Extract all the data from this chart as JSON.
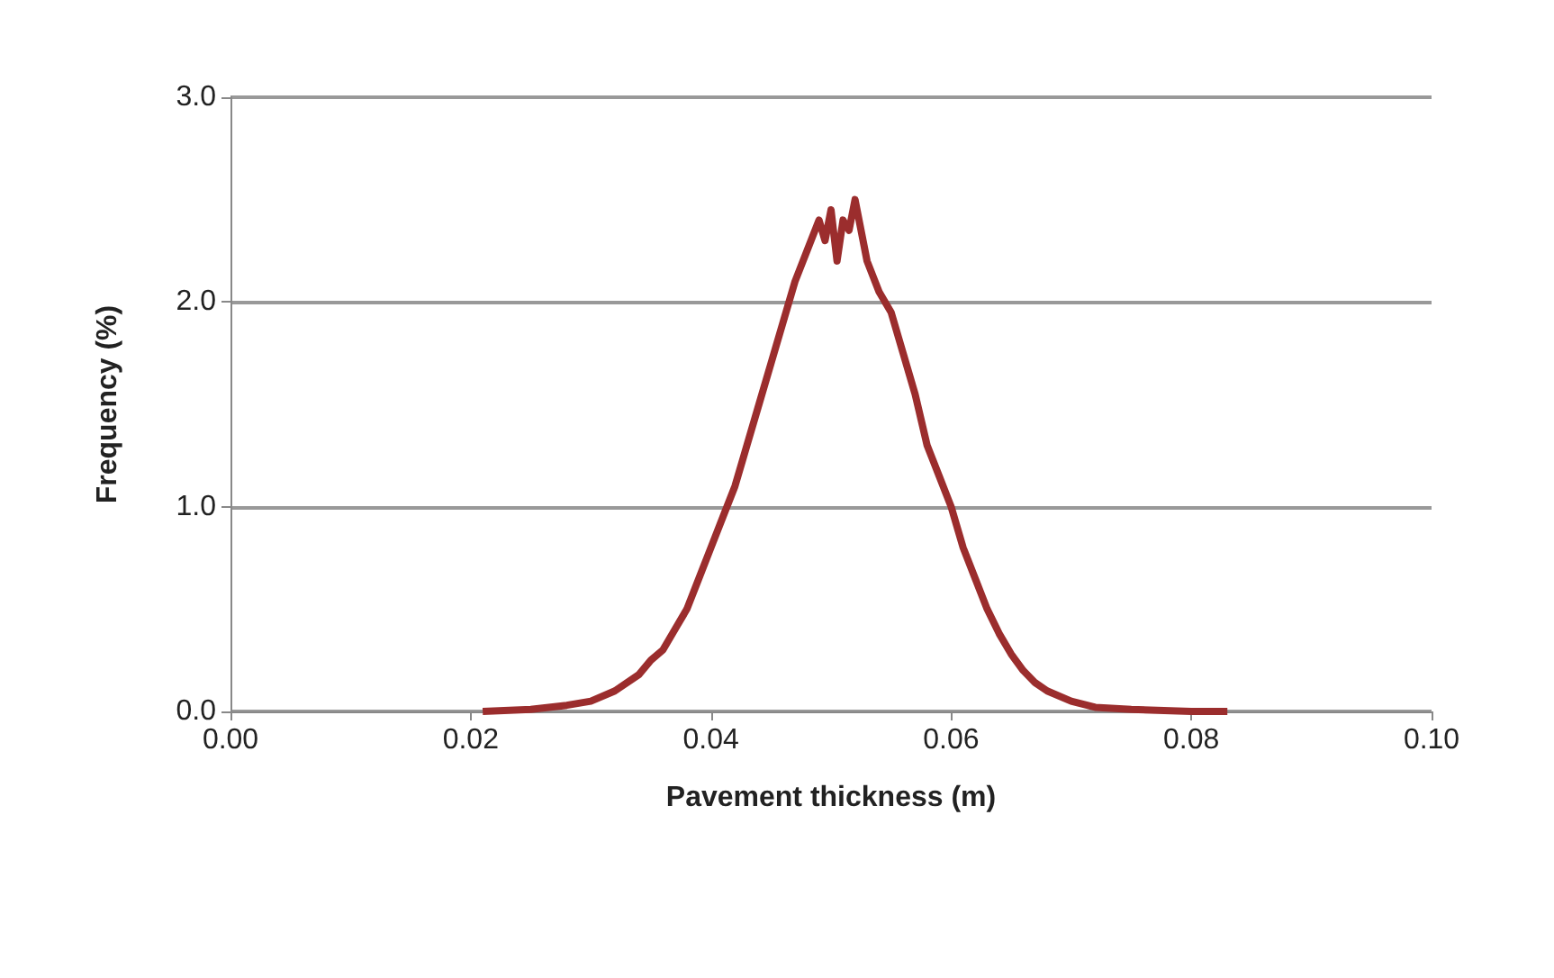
{
  "chart_data": {
    "type": "line",
    "xlabel": "Pavement thickness (m)",
    "ylabel": "Frequency (%)",
    "x": [
      0.021,
      0.025,
      0.028,
      0.03,
      0.032,
      0.034,
      0.035,
      0.036,
      0.037,
      0.038,
      0.039,
      0.04,
      0.041,
      0.042,
      0.043,
      0.044,
      0.045,
      0.046,
      0.047,
      0.048,
      0.049,
      0.0495,
      0.05,
      0.0505,
      0.051,
      0.0515,
      0.052,
      0.053,
      0.054,
      0.055,
      0.056,
      0.057,
      0.058,
      0.059,
      0.06,
      0.061,
      0.062,
      0.063,
      0.064,
      0.065,
      0.066,
      0.067,
      0.068,
      0.07,
      0.072,
      0.075,
      0.08,
      0.083
    ],
    "series": [
      {
        "color": "#9b2d2d",
        "values": [
          0,
          0.01,
          0.03,
          0.05,
          0.1,
          0.18,
          0.25,
          0.3,
          0.4,
          0.5,
          0.65,
          0.8,
          0.95,
          1.1,
          1.3,
          1.5,
          1.7,
          1.9,
          2.1,
          2.25,
          2.4,
          2.3,
          2.45,
          2.2,
          2.4,
          2.35,
          2.5,
          2.2,
          2.05,
          1.95,
          1.75,
          1.55,
          1.3,
          1.15,
          1.0,
          0.8,
          0.65,
          0.5,
          0.38,
          0.28,
          0.2,
          0.14,
          0.1,
          0.05,
          0.02,
          0.01,
          0,
          0
        ]
      }
    ],
    "xlim": [
      0,
      0.1
    ],
    "xticks": [
      {
        "value": 0,
        "label": "0.00"
      },
      {
        "value": 0.02,
        "label": "0.02"
      },
      {
        "value": 0.04,
        "label": "0.04"
      },
      {
        "value": 0.06,
        "label": "0.06"
      },
      {
        "value": 0.08,
        "label": "0.08"
      },
      {
        "value": 0.1,
        "label": "0.10"
      }
    ],
    "ylim": [
      0,
      3
    ],
    "yticks": [
      {
        "value": 0,
        "label": "0.0"
      },
      {
        "value": 1,
        "label": "1.0"
      },
      {
        "value": 2,
        "label": "2.0"
      },
      {
        "value": 3,
        "label": "3.0"
      }
    ],
    "grid": "y",
    "marker": "none",
    "line_style": "solid"
  }
}
